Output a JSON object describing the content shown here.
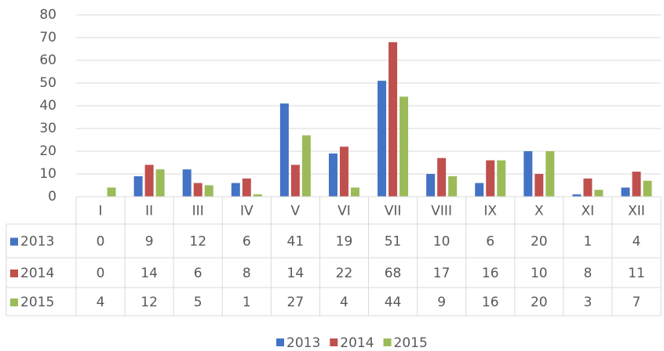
{
  "chart_data": {
    "type": "bar",
    "categories": [
      "I",
      "II",
      "III",
      "IV",
      "V",
      "VI",
      "VII",
      "VIII",
      "IX",
      "X",
      "XI",
      "XII"
    ],
    "series": [
      {
        "name": "2013",
        "color": "#4472c4",
        "values": [
          0,
          9,
          12,
          6,
          41,
          19,
          51,
          10,
          6,
          20,
          1,
          4
        ]
      },
      {
        "name": "2014",
        "color": "#c0504d",
        "values": [
          0,
          14,
          6,
          8,
          14,
          22,
          68,
          17,
          16,
          10,
          8,
          11
        ]
      },
      {
        "name": "2015",
        "color": "#9bbb59",
        "values": [
          4,
          12,
          5,
          1,
          27,
          4,
          44,
          9,
          16,
          20,
          3,
          7
        ]
      }
    ],
    "ylim": [
      0,
      80
    ],
    "yticks": [
      0,
      10,
      20,
      30,
      40,
      50,
      60,
      70,
      80
    ],
    "grid": true,
    "data_table": true,
    "legend": "bottom"
  }
}
